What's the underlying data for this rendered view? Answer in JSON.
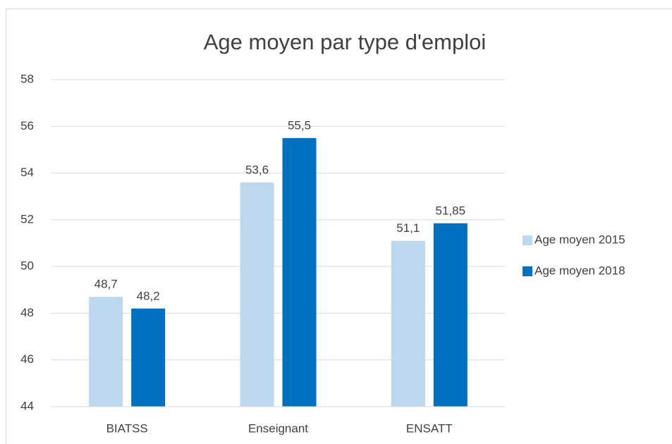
{
  "chart_data": {
    "type": "bar",
    "title": "Age moyen par type d'emploi",
    "categories": [
      "BIATSS",
      "Enseignant",
      "ENSATT"
    ],
    "series": [
      {
        "name": "Age moyen 2015",
        "color": "#bdd7ee",
        "values": [
          48.7,
          53.6,
          51.1
        ],
        "value_labels": [
          "48,7",
          "53,6",
          "51,1"
        ]
      },
      {
        "name": "Age moyen 2018",
        "color": "#0070c0",
        "values": [
          48.2,
          55.5,
          51.85
        ],
        "value_labels": [
          "48,2",
          "55,5",
          "51,85"
        ]
      }
    ],
    "ylim": [
      44,
      58
    ],
    "yticks": [
      44,
      46,
      48,
      50,
      52,
      54,
      56,
      58
    ],
    "grid": true,
    "legend": "right"
  }
}
